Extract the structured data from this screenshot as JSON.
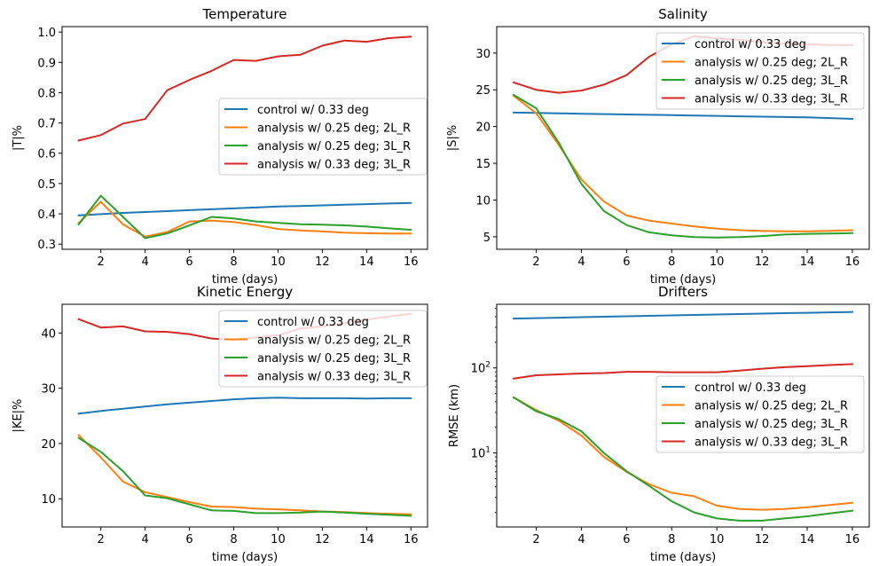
{
  "chart_data": [
    {
      "type": "line",
      "title": "Temperature",
      "xlabel": "time (days)",
      "ylabel": "|T|%",
      "xlim": [
        0.25,
        16.75
      ],
      "ylim": [
        0.283,
        1.018
      ],
      "yscale": "linear",
      "xticks": [
        2,
        4,
        6,
        8,
        10,
        12,
        14,
        16
      ],
      "yticks": [
        0.3,
        0.4,
        0.5,
        0.6,
        0.7,
        0.8,
        0.9,
        1.0
      ],
      "ytick_labels": [
        "0.3",
        "0.4",
        "0.5",
        "0.6",
        "0.7",
        "0.8",
        "0.9",
        "1.0"
      ],
      "legend_position": "center-right",
      "x": [
        1,
        2,
        3,
        4,
        5,
        6,
        7,
        8,
        9,
        10,
        11,
        12,
        13,
        14,
        15,
        16
      ],
      "series": [
        {
          "name": "control w/ 0.33 deg",
          "color": "#1f77b4",
          "values": [
            0.395,
            0.399,
            0.403,
            0.406,
            0.409,
            0.412,
            0.415,
            0.418,
            0.421,
            0.424,
            0.426,
            0.428,
            0.43,
            0.432,
            0.434,
            0.436
          ]
        },
        {
          "name": "analysis w/ 0.25 deg; 2L_R",
          "color": "#ff7f0e",
          "values": [
            0.37,
            0.44,
            0.365,
            0.325,
            0.34,
            0.375,
            0.378,
            0.373,
            0.363,
            0.35,
            0.345,
            0.342,
            0.338,
            0.336,
            0.335,
            0.335
          ]
        },
        {
          "name": "analysis w/ 0.25 deg; 3L_R",
          "color": "#2ca02c",
          "values": [
            0.365,
            0.46,
            0.39,
            0.32,
            0.335,
            0.362,
            0.39,
            0.385,
            0.375,
            0.37,
            0.366,
            0.364,
            0.362,
            0.358,
            0.352,
            0.347
          ]
        },
        {
          "name": "analysis w/ 0.33 deg; 3L_R",
          "color": "#d62728",
          "values": [
            0.642,
            0.66,
            0.698,
            0.713,
            0.808,
            0.842,
            0.872,
            0.908,
            0.905,
            0.92,
            0.925,
            0.955,
            0.972,
            0.968,
            0.98,
            0.985
          ]
        }
      ]
    },
    {
      "type": "line",
      "title": "Salinity",
      "xlabel": "time (days)",
      "ylabel": "|S|%",
      "xlim": [
        0.25,
        16.75
      ],
      "ylim": [
        3.3,
        33.6
      ],
      "yscale": "linear",
      "xticks": [
        2,
        4,
        6,
        8,
        10,
        12,
        14,
        16
      ],
      "yticks": [
        5,
        10,
        15,
        20,
        25,
        30
      ],
      "ytick_labels": [
        "5",
        "10",
        "15",
        "20",
        "25",
        "30"
      ],
      "legend_position": "top-right",
      "x": [
        1,
        2,
        3,
        4,
        5,
        6,
        7,
        8,
        9,
        10,
        11,
        12,
        13,
        14,
        15,
        16
      ],
      "series": [
        {
          "name": "control w/ 0.33 deg",
          "color": "#1f77b4",
          "values": [
            21.9,
            21.85,
            21.8,
            21.75,
            21.7,
            21.65,
            21.6,
            21.55,
            21.5,
            21.45,
            21.4,
            21.35,
            21.3,
            21.25,
            21.15,
            21.05
          ]
        },
        {
          "name": "analysis w/ 0.25 deg; 2L_R",
          "color": "#ff7f0e",
          "values": [
            24.2,
            21.8,
            17.5,
            12.8,
            9.8,
            7.9,
            7.2,
            6.8,
            6.4,
            6.1,
            5.9,
            5.8,
            5.75,
            5.75,
            5.8,
            5.9
          ]
        },
        {
          "name": "analysis w/ 0.25 deg; 3L_R",
          "color": "#2ca02c",
          "values": [
            24.3,
            22.5,
            17.8,
            12.2,
            8.5,
            6.6,
            5.6,
            5.2,
            4.95,
            4.9,
            4.95,
            5.1,
            5.3,
            5.4,
            5.45,
            5.5
          ]
        },
        {
          "name": "analysis w/ 0.33 deg; 3L_R",
          "color": "#d62728",
          "values": [
            26.0,
            25.0,
            24.6,
            24.9,
            25.7,
            27.0,
            29.5,
            31.2,
            32.3,
            32.0,
            31.8,
            31.5,
            31.3,
            31.2,
            31.1,
            31.1
          ]
        }
      ]
    },
    {
      "type": "line",
      "title": "Kinetic Energy",
      "xlabel": "time (days)",
      "ylabel": "|KE|%",
      "xlim": [
        0.25,
        16.75
      ],
      "ylim": [
        4.9,
        45.2
      ],
      "yscale": "linear",
      "xticks": [
        2,
        4,
        6,
        8,
        10,
        12,
        14,
        16
      ],
      "yticks": [
        10,
        20,
        30,
        40
      ],
      "ytick_labels": [
        "10",
        "20",
        "30",
        "40"
      ],
      "legend_position": "top-right",
      "x": [
        1,
        2,
        3,
        4,
        5,
        6,
        7,
        8,
        9,
        10,
        11,
        12,
        13,
        14,
        15,
        16
      ],
      "series": [
        {
          "name": "control w/ 0.33 deg",
          "color": "#1f77b4",
          "values": [
            25.4,
            25.9,
            26.3,
            26.7,
            27.1,
            27.4,
            27.7,
            28.0,
            28.2,
            28.3,
            28.2,
            28.2,
            28.2,
            28.15,
            28.2,
            28.2
          ]
        },
        {
          "name": "analysis w/ 0.25 deg; 2L_R",
          "color": "#ff7f0e",
          "values": [
            21.5,
            17.5,
            13.1,
            11.2,
            10.3,
            9.4,
            8.6,
            8.5,
            8.2,
            8.1,
            7.9,
            7.7,
            7.6,
            7.4,
            7.3,
            7.2
          ]
        },
        {
          "name": "analysis w/ 0.25 deg; 3L_R",
          "color": "#2ca02c",
          "values": [
            21.0,
            18.5,
            15.0,
            10.6,
            10.1,
            9.0,
            7.9,
            7.8,
            7.4,
            7.4,
            7.5,
            7.7,
            7.5,
            7.3,
            7.1,
            6.9
          ]
        },
        {
          "name": "analysis w/ 0.33 deg; 3L_R",
          "color": "#d62728",
          "values": [
            42.5,
            41.0,
            41.2,
            40.3,
            40.2,
            39.8,
            39.0,
            38.8,
            39.2,
            39.6,
            40.8,
            41.2,
            41.8,
            42.4,
            43.0,
            43.5
          ]
        }
      ]
    },
    {
      "type": "line",
      "title": "Drifters",
      "xlabel": "time (days)",
      "ylabel": "RMSE (km)",
      "xlim": [
        0.25,
        16.75
      ],
      "ylim": [
        1.35,
        560
      ],
      "yscale": "log",
      "xticks": [
        2,
        4,
        6,
        8,
        10,
        12,
        14,
        16
      ],
      "yticks": [
        10,
        100
      ],
      "ytick_labels": [
        "10^1",
        "10^2"
      ],
      "legend_position": "center-right",
      "x": [
        1,
        2,
        3,
        4,
        5,
        6,
        7,
        8,
        9,
        10,
        11,
        12,
        13,
        14,
        15,
        16
      ],
      "series": [
        {
          "name": "control w/ 0.33 deg",
          "color": "#1f77b4",
          "values": [
            380,
            385,
            390,
            395,
            400,
            405,
            410,
            415,
            420,
            425,
            430,
            435,
            440,
            445,
            450,
            455
          ]
        },
        {
          "name": "analysis w/ 0.25 deg; 2L_R",
          "color": "#ff7f0e",
          "values": [
            45,
            32,
            24,
            16,
            9,
            6,
            4.3,
            3.4,
            3.1,
            2.4,
            2.2,
            2.15,
            2.2,
            2.3,
            2.45,
            2.6
          ]
        },
        {
          "name": "analysis w/ 0.25 deg; 3L_R",
          "color": "#2ca02c",
          "values": [
            45,
            31,
            25,
            18,
            10,
            6.1,
            4.1,
            2.7,
            2.0,
            1.7,
            1.6,
            1.6,
            1.7,
            1.8,
            1.95,
            2.1
          ]
        },
        {
          "name": "analysis w/ 0.33 deg; 3L_R",
          "color": "#d62728",
          "values": [
            75,
            82,
            84,
            86,
            87,
            90,
            90,
            89,
            89,
            89,
            93,
            98,
            102,
            105,
            108,
            111
          ]
        }
      ]
    }
  ]
}
